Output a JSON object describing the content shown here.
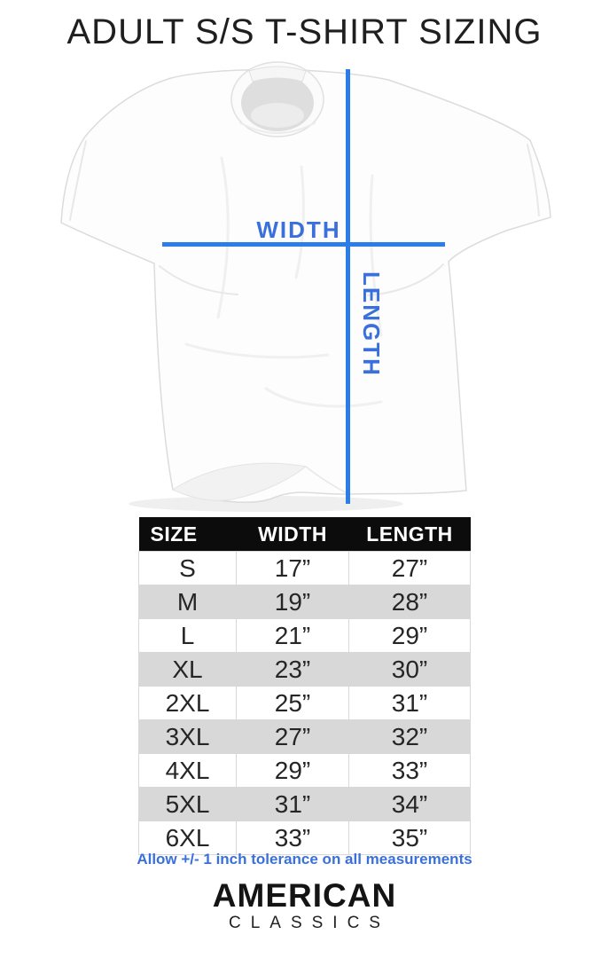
{
  "title": "ADULT S/S T-SHIRT SIZING",
  "diagram": {
    "width_label": "WIDTH",
    "length_label": "LENGTH"
  },
  "size_chart": {
    "columns": [
      "SIZE",
      "WIDTH",
      "LENGTH"
    ],
    "rows": [
      [
        "S",
        "17”",
        "27”"
      ],
      [
        "M",
        "19”",
        "28”"
      ],
      [
        "L",
        "21”",
        "29”"
      ],
      [
        "XL",
        "23”",
        "30”"
      ],
      [
        "2XL",
        "25”",
        "31”"
      ],
      [
        "3XL",
        "27”",
        "32”"
      ],
      [
        "4XL",
        "29”",
        "33”"
      ],
      [
        "5XL",
        "31”",
        "34”"
      ],
      [
        "6XL",
        "33”",
        "35”"
      ]
    ]
  },
  "note": "Allow +/- 1 inch tolerance on all measurements",
  "brand": {
    "name": "AMERICAN",
    "subname": "CLASSICS"
  },
  "colors": {
    "accent_line": "#2b7de9",
    "accent_text": "#3a70dc",
    "header_bg": "#0c0c0c",
    "row_alt": "#d8d8d8"
  },
  "chart_data": {
    "type": "table",
    "title": "ADULT S/S T-SHIRT SIZING",
    "columns": [
      "SIZE",
      "WIDTH",
      "LENGTH"
    ],
    "rows": [
      [
        "S",
        "17”",
        "27”"
      ],
      [
        "M",
        "19”",
        "28”"
      ],
      [
        "L",
        "21”",
        "29”"
      ],
      [
        "XL",
        "23”",
        "30”"
      ],
      [
        "2XL",
        "25”",
        "31”"
      ],
      [
        "3XL",
        "27”",
        "32”"
      ],
      [
        "4XL",
        "29”",
        "33”"
      ],
      [
        "5XL",
        "31”",
        "34”"
      ],
      [
        "6XL",
        "33”",
        "35”"
      ]
    ]
  }
}
